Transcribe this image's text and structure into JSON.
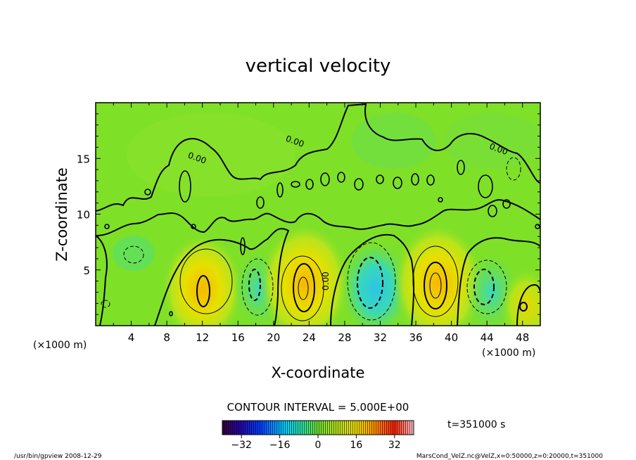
{
  "chart_data": {
    "type": "heatmap",
    "title": "vertical velocity",
    "xlabel": "X-coordinate",
    "ylabel": "Z-coordinate",
    "x_unit_left": "(×1000 m)",
    "x_unit_right": "(×1000 m)",
    "xlim": [
      0,
      50
    ],
    "ylim": [
      0,
      20
    ],
    "xticks": [
      4,
      8,
      12,
      16,
      20,
      24,
      28,
      32,
      36,
      40,
      44,
      48
    ],
    "yticks": [
      5,
      10,
      15
    ],
    "contour_interval_text": "CONTOUR INTERVAL = 5.000E+00",
    "contour_labels": [
      {
        "x": 11.3,
        "z": 14.8,
        "text": "0.00"
      },
      {
        "x": 22.3,
        "z": 16.3,
        "text": "0.00"
      },
      {
        "x": 26.2,
        "z": 4.0,
        "text": "0.00"
      },
      {
        "x": 45.2,
        "z": 15.6,
        "text": "0.00"
      }
    ],
    "cells": [
      {
        "x": 12,
        "z": 3.3,
        "w": 24,
        "kind": "updraft"
      },
      {
        "x": 18.5,
        "z": 3.3,
        "w": -12,
        "kind": "downdraft"
      },
      {
        "x": 23.5,
        "z": 3.8,
        "w": 28,
        "kind": "updraft"
      },
      {
        "x": 31.5,
        "z": 3.3,
        "w": -18,
        "kind": "downdraft"
      },
      {
        "x": 38.5,
        "z": 3.8,
        "w": 28,
        "kind": "updraft"
      },
      {
        "x": 44.5,
        "z": 3.0,
        "w": -12,
        "kind": "downdraft"
      },
      {
        "x": 48.5,
        "z": 1.8,
        "w": 12,
        "kind": "updraft"
      }
    ],
    "colorbar": {
      "range": [
        -40,
        40
      ],
      "ticks": [
        "−32",
        "−16",
        "0",
        "16",
        "32"
      ],
      "tick_values": [
        -32,
        -16,
        0,
        16,
        32
      ]
    },
    "time_label": "t=351000 s"
  },
  "footer": {
    "left": "/usr/bin/gpview  2008-12-29",
    "right": "MarsCond_VelZ.nc@VelZ,x=0:50000,z=0:20000,t=351000"
  }
}
